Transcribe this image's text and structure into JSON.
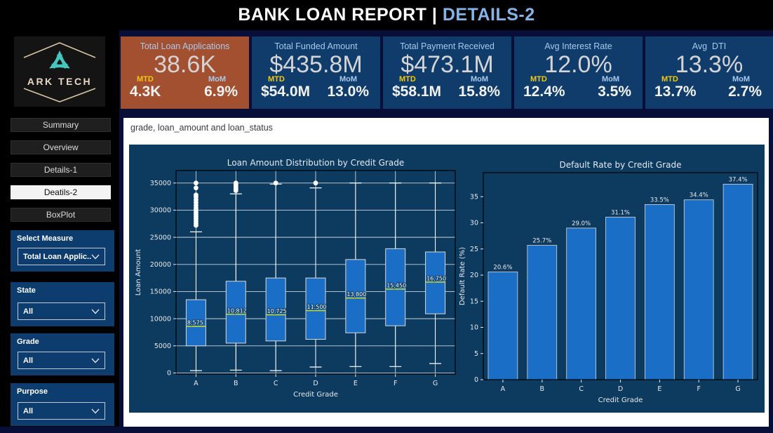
{
  "title_bar": {
    "part1": "BANK LOAN REPORT | ",
    "part2": "DETAILS-2"
  },
  "sidebar": {
    "logo_text": "ARK TECH",
    "nav": [
      {
        "label": "Summary",
        "selected": false
      },
      {
        "label": "Overview",
        "selected": false
      },
      {
        "label": "Details-1",
        "selected": false
      },
      {
        "label": "Deatils-2",
        "selected": true
      },
      {
        "label": "BoxPlot",
        "selected": false
      }
    ],
    "filters": [
      {
        "label": "Select Measure",
        "value": "Total Loan Applic..."
      },
      {
        "label": "State",
        "value": "All"
      },
      {
        "label": "Grade",
        "value": "All"
      },
      {
        "label": "Purpose",
        "value": "All"
      }
    ]
  },
  "cards": [
    {
      "title": "Total Loan Applications",
      "value": "38.6K",
      "mtd_label": "MTD",
      "mom_label": "MoM",
      "mtd_value": "4.3K",
      "mom_value": "6.9%",
      "highlight": true
    },
    {
      "title": "Total Funded Amount",
      "value": "$435.8M",
      "mtd_label": "MTD",
      "mom_label": "MoM",
      "mtd_value": "$54.0M",
      "mom_value": "13.0%",
      "highlight": false
    },
    {
      "title": "Total Payment Received",
      "value": "$473.1M",
      "mtd_label": "MTD",
      "mom_label": "MoM",
      "mtd_value": "$58.1M",
      "mom_value": "15.8%",
      "highlight": false
    },
    {
      "title": "Avg Interest Rate",
      "value": "12.0%",
      "mtd_label": "MTD",
      "mom_label": "MoM",
      "mtd_value": "12.4%",
      "mom_value": "3.5%",
      "highlight": false
    },
    {
      "title": "Avg  DTI",
      "value": "13.3%",
      "mtd_label": "MTD",
      "mom_label": "MoM",
      "mtd_value": "13.7%",
      "mom_value": "2.7%",
      "highlight": false
    }
  ],
  "main": {
    "header": "grade, loan_amount and loan_status"
  },
  "icons": {
    "dropdown": "chevron-down"
  },
  "colors": {
    "page_bg": "#070F38",
    "titlebar_bg": "#000000",
    "title_accent": "#85B4E8",
    "sidebar_bg": "#000000",
    "card_bg": "#0F3C6A",
    "card_highlight_bg": "#A2502F",
    "card_title": "#A9C9EE",
    "card_value": "#D4D4D4",
    "mtd_label": "#F2C80F",
    "mom_label": "#A9C9EE",
    "filter_bg": "#0D3C6F",
    "figure_bg": "#0D3A5F",
    "series_fill": "#1B6EC5",
    "box_edge": "#D8D8D8",
    "median_line": "#BFD12E",
    "whisker": "#FFFFFF",
    "grid_line": "#E9EEF5",
    "spine": "#000000",
    "tick_text": "#E9E9E9",
    "chart_title_text": "#E5EAF2",
    "logo_teal": "#45C7BF",
    "logo_beige": "#D8C3A5"
  },
  "chart_data": [
    {
      "type": "box",
      "title": "Loan Amount Distribution by Credit Grade",
      "xlabel": "Credit Grade",
      "ylabel": "Loan Amount",
      "categories": [
        "A",
        "B",
        "C",
        "D",
        "E",
        "F",
        "G"
      ],
      "yticks": [
        0,
        5000,
        10000,
        15000,
        20000,
        25000,
        30000,
        35000
      ],
      "ylim": [
        -200,
        37300
      ],
      "grid": true,
      "legend": "none",
      "boxes": [
        {
          "category": "A",
          "whisker_low": 430,
          "q1": 5000,
          "median": 8575,
          "q3": 13500,
          "whisker_high": 26000,
          "median_label": "8,575",
          "outliers": [
            27200,
            27600,
            28000,
            28400,
            28800,
            29200,
            29600,
            30000,
            30400,
            30900,
            31400,
            31900,
            32400,
            32800,
            34100,
            35000
          ]
        },
        {
          "category": "B",
          "whisker_low": 520,
          "q1": 5500,
          "median": 10812,
          "q3": 16900,
          "whisker_high": 33000,
          "median_label": "10,812",
          "outliers": [
            33600,
            33850,
            34100,
            34350,
            34600,
            34800,
            35000
          ]
        },
        {
          "category": "C",
          "whisker_low": 430,
          "q1": 5900,
          "median": 10725,
          "q3": 17500,
          "whisker_high": 34800,
          "median_label": "10,725",
          "outliers": [
            35000
          ]
        },
        {
          "category": "D",
          "whisker_low": 1090,
          "q1": 6200,
          "median": 11500,
          "q3": 17500,
          "whisker_high": 34100,
          "median_label": "11,500",
          "outliers": [
            35000
          ]
        },
        {
          "category": "E",
          "whisker_low": 1180,
          "q1": 7400,
          "median": 13800,
          "q3": 20900,
          "whisker_high": 35000,
          "median_label": "13,800",
          "outliers": []
        },
        {
          "category": "F",
          "whisker_low": 1180,
          "q1": 8700,
          "median": 15450,
          "q3": 22900,
          "whisker_high": 35000,
          "median_label": "15,450",
          "outliers": []
        },
        {
          "category": "G",
          "whisker_low": 1740,
          "q1": 10900,
          "median": 16750,
          "q3": 22300,
          "whisker_high": 35000,
          "median_label": "16,750",
          "outliers": []
        }
      ]
    },
    {
      "type": "bar",
      "title": "Default Rate by Credit Grade",
      "xlabel": "Credit Grade",
      "ylabel": "Default Rate (%)",
      "categories": [
        "A",
        "B",
        "C",
        "D",
        "E",
        "F",
        "G"
      ],
      "values": [
        20.6,
        25.7,
        29.0,
        31.1,
        33.5,
        34.4,
        37.4
      ],
      "bar_labels": [
        "20.6%",
        "25.7%",
        "29.0%",
        "31.1%",
        "33.5%",
        "34.4%",
        "37.4%"
      ],
      "yticks": [
        0,
        5,
        10,
        15,
        20,
        25,
        30,
        35
      ],
      "ylim": [
        0,
        39.6
      ],
      "grid": false,
      "legend": "none"
    }
  ]
}
